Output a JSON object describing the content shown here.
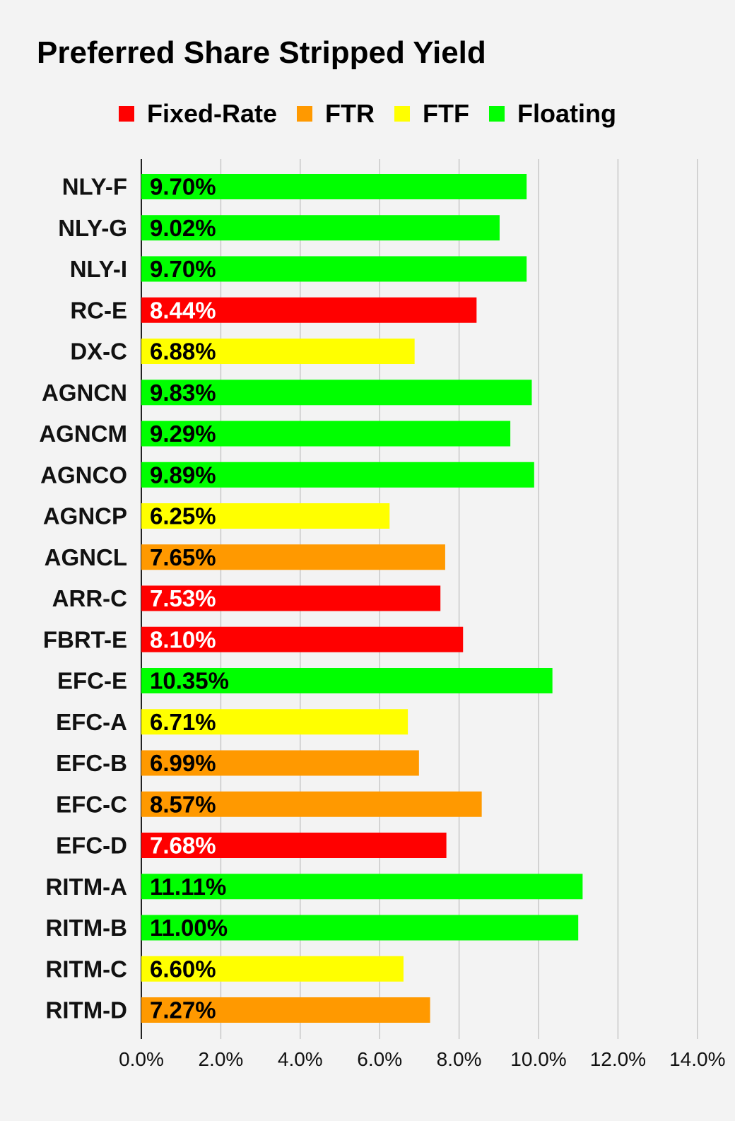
{
  "chart_data": {
    "type": "bar",
    "orientation": "horizontal",
    "title": "Preferred Share Stripped Yield",
    "legend": [
      {
        "name": "Fixed-Rate",
        "color": "#ff0000"
      },
      {
        "name": "FTR",
        "color": "#ff9900"
      },
      {
        "name": "FTF",
        "color": "#ffff00"
      },
      {
        "name": "Floating",
        "color": "#00ff00"
      }
    ],
    "legend_position": "top",
    "grid": true,
    "xlim": [
      0,
      14
    ],
    "x_ticks": [
      "0.0%",
      "2.0%",
      "4.0%",
      "6.0%",
      "8.0%",
      "10.0%",
      "12.0%",
      "14.0%"
    ],
    "categories": [
      "NLY-F",
      "NLY-G",
      "NLY-I",
      "RC-E",
      "DX-C",
      "AGNCN",
      "AGNCM",
      "AGNCO",
      "AGNCP",
      "AGNCL",
      "ARR-C",
      "FBRT-E",
      "EFC-E",
      "EFC-A",
      "EFC-B",
      "EFC-C",
      "EFC-D",
      "RITM-A",
      "RITM-B",
      "RITM-C",
      "RITM-D"
    ],
    "values": [
      9.7,
      9.02,
      9.7,
      8.44,
      6.88,
      9.83,
      9.29,
      9.89,
      6.25,
      7.65,
      7.53,
      8.1,
      10.35,
      6.71,
      6.99,
      8.57,
      7.68,
      11.11,
      11.0,
      6.6,
      7.27
    ],
    "value_labels": [
      "9.70%",
      "9.02%",
      "9.70%",
      "8.44%",
      "6.88%",
      "9.83%",
      "9.29%",
      "9.89%",
      "6.25%",
      "7.65%",
      "7.53%",
      "8.10%",
      "10.35%",
      "6.71%",
      "6.99%",
      "8.57%",
      "7.68%",
      "11.11%",
      "11.00%",
      "6.60%",
      "7.27%"
    ],
    "bar_types": [
      "Floating",
      "Floating",
      "Floating",
      "Fixed-Rate",
      "FTF",
      "Floating",
      "Floating",
      "Floating",
      "FTF",
      "FTR",
      "Fixed-Rate",
      "Fixed-Rate",
      "Floating",
      "FTF",
      "FTR",
      "FTR",
      "Fixed-Rate",
      "Floating",
      "Floating",
      "FTF",
      "FTR"
    ],
    "label_colors": {
      "Fixed-Rate": "#ffffff",
      "FTR": "#000000",
      "FTF": "#000000",
      "Floating": "#000000"
    }
  }
}
